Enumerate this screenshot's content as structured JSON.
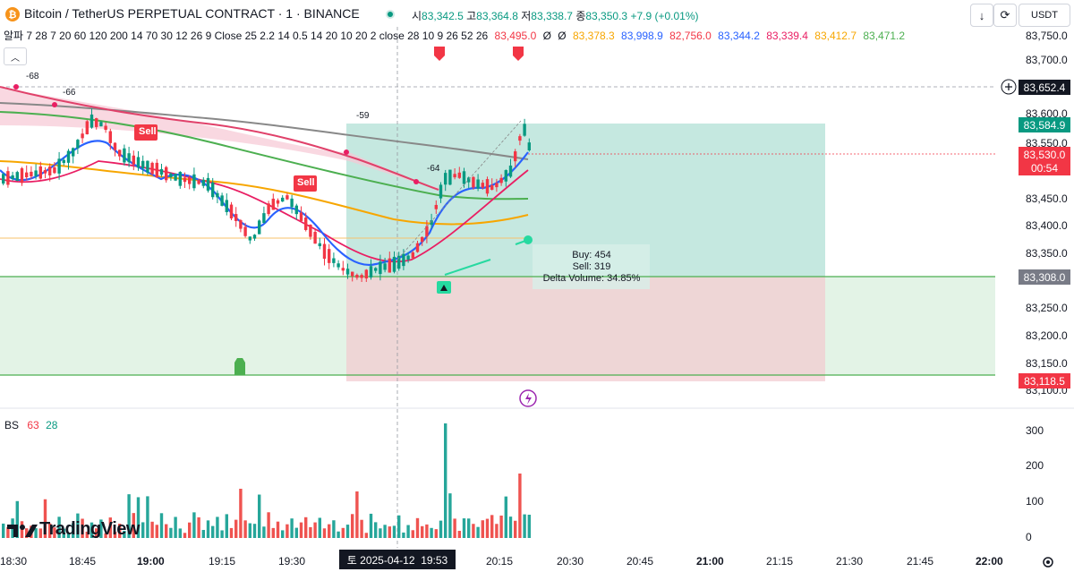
{
  "header": {
    "symbol_title": "Bitcoin / TetherUS PERPETUAL CONTRACT · 1 · BINANCE",
    "ohlc": [
      {
        "key": "시",
        "value": "83,342.5"
      },
      {
        "key": "고",
        "value": "83,364.8"
      },
      {
        "key": "저",
        "value": "83,338.7"
      },
      {
        "key": "종",
        "value": "83,350.3"
      }
    ],
    "change": "+7.9 (+0.01%)",
    "currency": "USDT",
    "accent_up": "#089981",
    "accent_down": "#f23645"
  },
  "indicator_line": {
    "label": "알파 7 28 7 20 60 120 200 14 70 30 12 26 9 Close 25 2.2 14 0.5 14 20 10 20 2 close 28 10 9 26 52 26",
    "values": [
      {
        "text": "83,495.0",
        "color": "#f23645"
      },
      {
        "text": "Ø",
        "color": "#131722"
      },
      {
        "text": "Ø",
        "color": "#131722"
      },
      {
        "text": "83,378.3",
        "color": "#f7a600"
      },
      {
        "text": "83,998.9",
        "color": "#2962ff"
      },
      {
        "text": "82,756.0",
        "color": "#f23645"
      },
      {
        "text": "83,344.2",
        "color": "#2962ff"
      },
      {
        "text": "83,339.4",
        "color": "#e91e63"
      },
      {
        "text": "83,412.7",
        "color": "#f7a600"
      },
      {
        "text": "83,471.2",
        "color": "#4caf50"
      }
    ]
  },
  "price_axis": {
    "ticks": [
      "83,750.0",
      "83,700.0",
      "83,600.0",
      "83,550.0",
      "83,450.0",
      "83,400.0",
      "83,350.0",
      "83,250.0",
      "83,200.0",
      "83,150.0",
      "83,100.0"
    ],
    "crosshair_price": "83,652.4",
    "labels": [
      {
        "text": "83,584.9",
        "color": "#089981"
      },
      {
        "text": "83,530.0",
        "color": "#f23645"
      },
      {
        "text": "00:54",
        "color": "#f23645"
      },
      {
        "text": "83,308.0",
        "color": "#787b86"
      },
      {
        "text": "83,118.5",
        "color": "#f23645"
      }
    ]
  },
  "chart_labels": {
    "sell_1": "Sell",
    "sell_2": "Sell",
    "n68": "-68",
    "n66": "-66",
    "n59": "-59",
    "n64": "-64"
  },
  "tooltip": {
    "buy": "Buy: 454",
    "sell": "Sell: 319",
    "delta": "Delta Volume: 34.85%"
  },
  "volume_pane": {
    "title": "BS",
    "val1": "63",
    "val2": "28",
    "ticks": [
      "300",
      "200",
      "100",
      "0"
    ]
  },
  "time_axis": {
    "ticks": [
      "18:30",
      "18:45",
      "19:00",
      "19:15",
      "19:30",
      "20:15",
      "20:30",
      "20:45",
      "21:00",
      "21:15",
      "21:30",
      "21:45",
      "22:00"
    ],
    "crosshair_time": "토 2025-04-12  19:53"
  },
  "branding": {
    "logo": "TradingView"
  }
}
